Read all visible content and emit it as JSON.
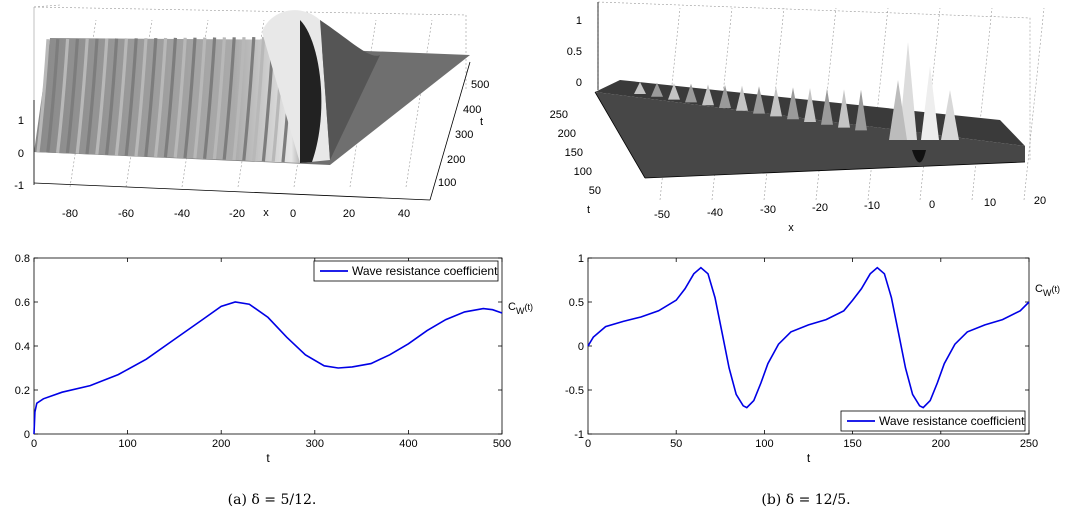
{
  "figures": [
    {
      "caption": "(a) δ = 5/12.",
      "surface": {
        "type": "surface3d",
        "x_label": "x",
        "t_label": "t",
        "x_ticks": [
          "-80",
          "-60",
          "-40",
          "-20",
          "0",
          "20",
          "40"
        ],
        "t_ticks": [
          "100",
          "200",
          "300",
          "400",
          "500"
        ],
        "z_ticks": [
          "-1",
          "0",
          "1"
        ]
      },
      "line": {
        "type": "line",
        "xlabel": "t",
        "ylabel": "C_W(t)",
        "legend": "Wave resistance coefficient",
        "legend_position": "top-right",
        "xlim": [
          0,
          500
        ],
        "ylim": [
          0,
          0.8
        ],
        "x_ticks": [
          "0",
          "100",
          "200",
          "300",
          "400",
          "500"
        ],
        "y_ticks": [
          "0",
          "0.2",
          "0.4",
          "0.6",
          "0.8"
        ],
        "x": [
          0,
          1,
          3,
          10,
          30,
          60,
          90,
          120,
          150,
          180,
          200,
          215,
          230,
          250,
          270,
          290,
          310,
          325,
          340,
          360,
          380,
          400,
          420,
          440,
          460,
          480,
          490,
          500
        ],
        "y": [
          0.0,
          0.1,
          0.14,
          0.16,
          0.19,
          0.22,
          0.27,
          0.34,
          0.43,
          0.52,
          0.58,
          0.6,
          0.59,
          0.53,
          0.44,
          0.36,
          0.31,
          0.3,
          0.305,
          0.32,
          0.36,
          0.41,
          0.47,
          0.52,
          0.555,
          0.57,
          0.565,
          0.55
        ]
      }
    },
    {
      "caption": "(b) δ = 12/5.",
      "surface": {
        "type": "surface3d",
        "x_label": "x",
        "t_label": "t",
        "x_ticks": [
          "-50",
          "-40",
          "-30",
          "-20",
          "-10",
          "0",
          "10",
          "20"
        ],
        "t_ticks": [
          "50",
          "100",
          "150",
          "200",
          "250"
        ],
        "z_ticks": [
          "0",
          "0.5",
          "1"
        ]
      },
      "line": {
        "type": "line",
        "xlabel": "t",
        "ylabel": "C_W(t)",
        "legend": "Wave resistance coefficient",
        "legend_position": "bottom-right",
        "xlim": [
          0,
          250
        ],
        "ylim": [
          -1,
          1
        ],
        "x_ticks": [
          "0",
          "50",
          "100",
          "150",
          "200",
          "250"
        ],
        "y_ticks": [
          "-1",
          "-0.5",
          "0",
          "0.5",
          "1"
        ],
        "x": [
          0,
          3,
          10,
          20,
          30,
          40,
          50,
          55,
          60,
          64,
          68,
          72,
          76,
          80,
          84,
          88,
          90,
          94,
          98,
          102,
          108,
          115,
          125,
          135,
          145,
          150,
          155,
          160,
          164,
          168,
          172,
          176,
          180,
          184,
          188,
          190,
          194,
          198,
          202,
          208,
          215,
          225,
          235,
          245,
          250
        ],
        "y": [
          0.0,
          0.1,
          0.22,
          0.28,
          0.33,
          0.4,
          0.52,
          0.65,
          0.82,
          0.89,
          0.82,
          0.55,
          0.15,
          -0.25,
          -0.55,
          -0.68,
          -0.7,
          -0.62,
          -0.42,
          -0.2,
          0.02,
          0.16,
          0.24,
          0.3,
          0.4,
          0.52,
          0.65,
          0.82,
          0.89,
          0.82,
          0.55,
          0.15,
          -0.25,
          -0.55,
          -0.68,
          -0.7,
          -0.62,
          -0.42,
          -0.2,
          0.02,
          0.16,
          0.24,
          0.3,
          0.4,
          0.5
        ]
      }
    }
  ]
}
